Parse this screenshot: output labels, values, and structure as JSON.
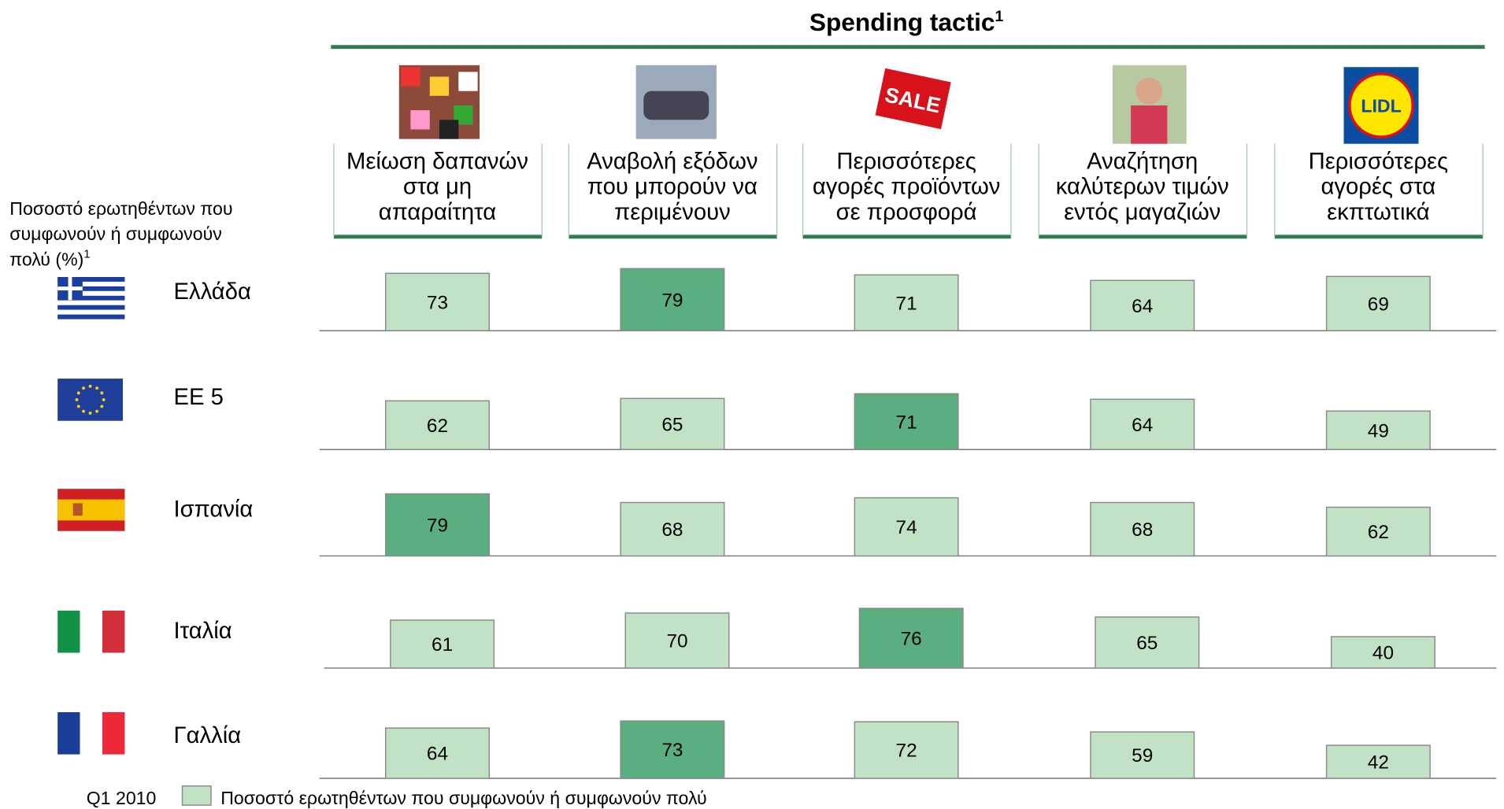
{
  "chart_data": {
    "type": "bar",
    "title": "Spending tactic",
    "title_footnote": "1",
    "y_label": [
      "Ποσοστό ερωτηθέντων που",
      "συμφωνούν ή συμφωνούν",
      "πολύ (%)"
    ],
    "y_label_footnote": "1",
    "categories": [
      [
        "Μείωση δαπανών",
        "στα μη",
        "απαραίτητα"
      ],
      [
        "Αναβολή εξόδων",
        "που μπορούν να",
        "περιμένουν"
      ],
      [
        "Περισσότερες",
        "αγορές προϊόντων",
        "σε προσφορά"
      ],
      [
        "Αναζήτηση",
        "καλύτερων τιμών",
        "εντός μαγαζιών"
      ],
      [
        "Περισσότερες",
        "αγορές στα",
        "εκπτωτικά"
      ]
    ],
    "icon_texts": [
      "SALE",
      "LIDL"
    ],
    "color": "#c2e2c6",
    "highlight_color": "#5aae7f",
    "series": [
      {
        "name": "Ελλάδα",
        "values": [
          73,
          79,
          71,
          64,
          69
        ]
      },
      {
        "name": "EE 5",
        "values": [
          62,
          65,
          71,
          64,
          49
        ]
      },
      {
        "name": "Ισπανία",
        "values": [
          79,
          68,
          74,
          68,
          62
        ]
      },
      {
        "name": "Ιταλία",
        "values": [
          61,
          70,
          76,
          65,
          40
        ]
      },
      {
        "name": "Γαλλία",
        "values": [
          64,
          73,
          72,
          59,
          42
        ]
      }
    ],
    "period": "Q1 2010",
    "legend": "Ποσοστό ερωτηθέντων που συμφωνούν ή συμφωνούν πολύ"
  }
}
